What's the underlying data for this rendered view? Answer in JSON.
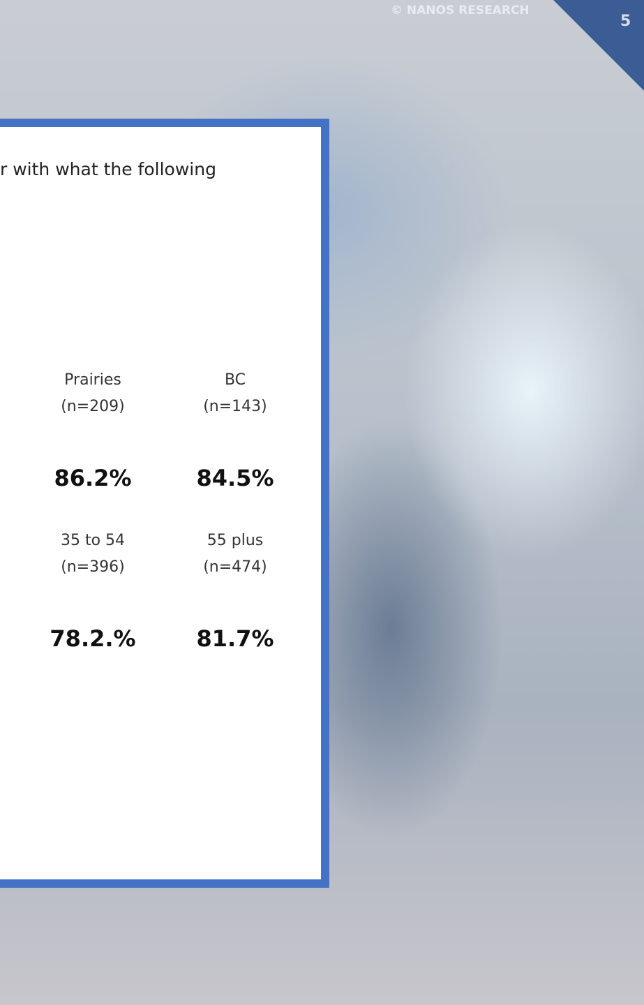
{
  "header": {
    "copyright": "© NANOS RESEARCH",
    "page_number": "5"
  },
  "question": "r with what the following",
  "groups": [
    {
      "columns": [
        {
          "label": "Prairies",
          "n": "(n=209)",
          "value": "86.2%"
        },
        {
          "label": "BC",
          "n": "(n=143)",
          "value": "84.5%"
        }
      ]
    },
    {
      "columns": [
        {
          "label": "35 to 54",
          "n": "(n=396)",
          "value": "78.2.%"
        },
        {
          "label": "55 plus",
          "n": "(n=474)",
          "value": "81.7%"
        }
      ]
    }
  ]
}
